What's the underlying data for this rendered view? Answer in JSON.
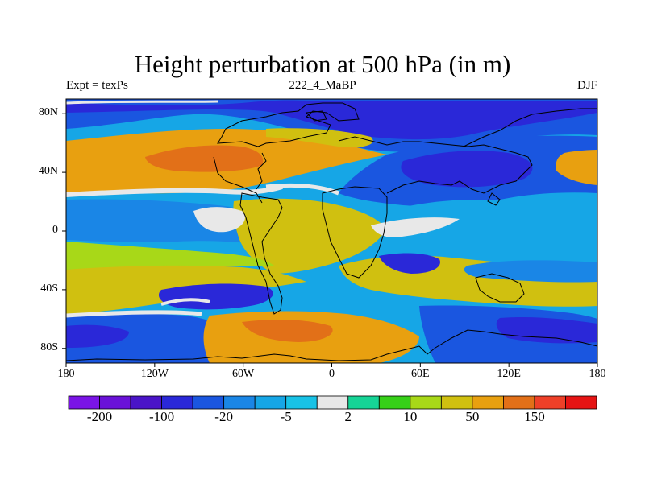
{
  "title": "Height perturbation at 500 hPa (in m)",
  "subtitle": {
    "left": "Expt = texPs",
    "center": "222_4_MaBP",
    "right": "DJF"
  },
  "axes": {
    "y_ticks": [
      {
        "label": "80N",
        "lat": 80
      },
      {
        "label": "40N",
        "lat": 40
      },
      {
        "label": "0",
        "lat": 0
      },
      {
        "label": "40S",
        "lat": -40
      },
      {
        "label": "80S",
        "lat": -80
      }
    ],
    "x_ticks": [
      {
        "label": "180",
        "lon": -180
      },
      {
        "label": "120W",
        "lon": -120
      },
      {
        "label": "60W",
        "lon": -60
      },
      {
        "label": "0",
        "lon": 0
      },
      {
        "label": "60E",
        "lon": 60
      },
      {
        "label": "120E",
        "lon": 120
      },
      {
        "label": "180",
        "lon": 180
      }
    ],
    "lon_range": [
      -180,
      180
    ],
    "lat_range": [
      -90,
      90
    ]
  },
  "colorbar": {
    "colors": [
      "#7a14e6",
      "#6a12d8",
      "#4a14c8",
      "#2a28d8",
      "#1a56e0",
      "#1a86e6",
      "#16a6e6",
      "#18c2e6",
      "#e8e8e8",
      "#16d496",
      "#36d018",
      "#a8d818",
      "#d0c010",
      "#e8a010",
      "#e27018",
      "#ee4028",
      "#e61414"
    ],
    "labels": [
      {
        "text": "-200",
        "boundary": 1
      },
      {
        "text": "-100",
        "boundary": 3
      },
      {
        "text": "-20",
        "boundary": 5
      },
      {
        "text": "-5",
        "boundary": 7
      },
      {
        "text": "2",
        "boundary": 9
      },
      {
        "text": "10",
        "boundary": 11
      },
      {
        "text": "50",
        "boundary": 13
      },
      {
        "text": "150",
        "boundary": 15
      }
    ]
  }
}
